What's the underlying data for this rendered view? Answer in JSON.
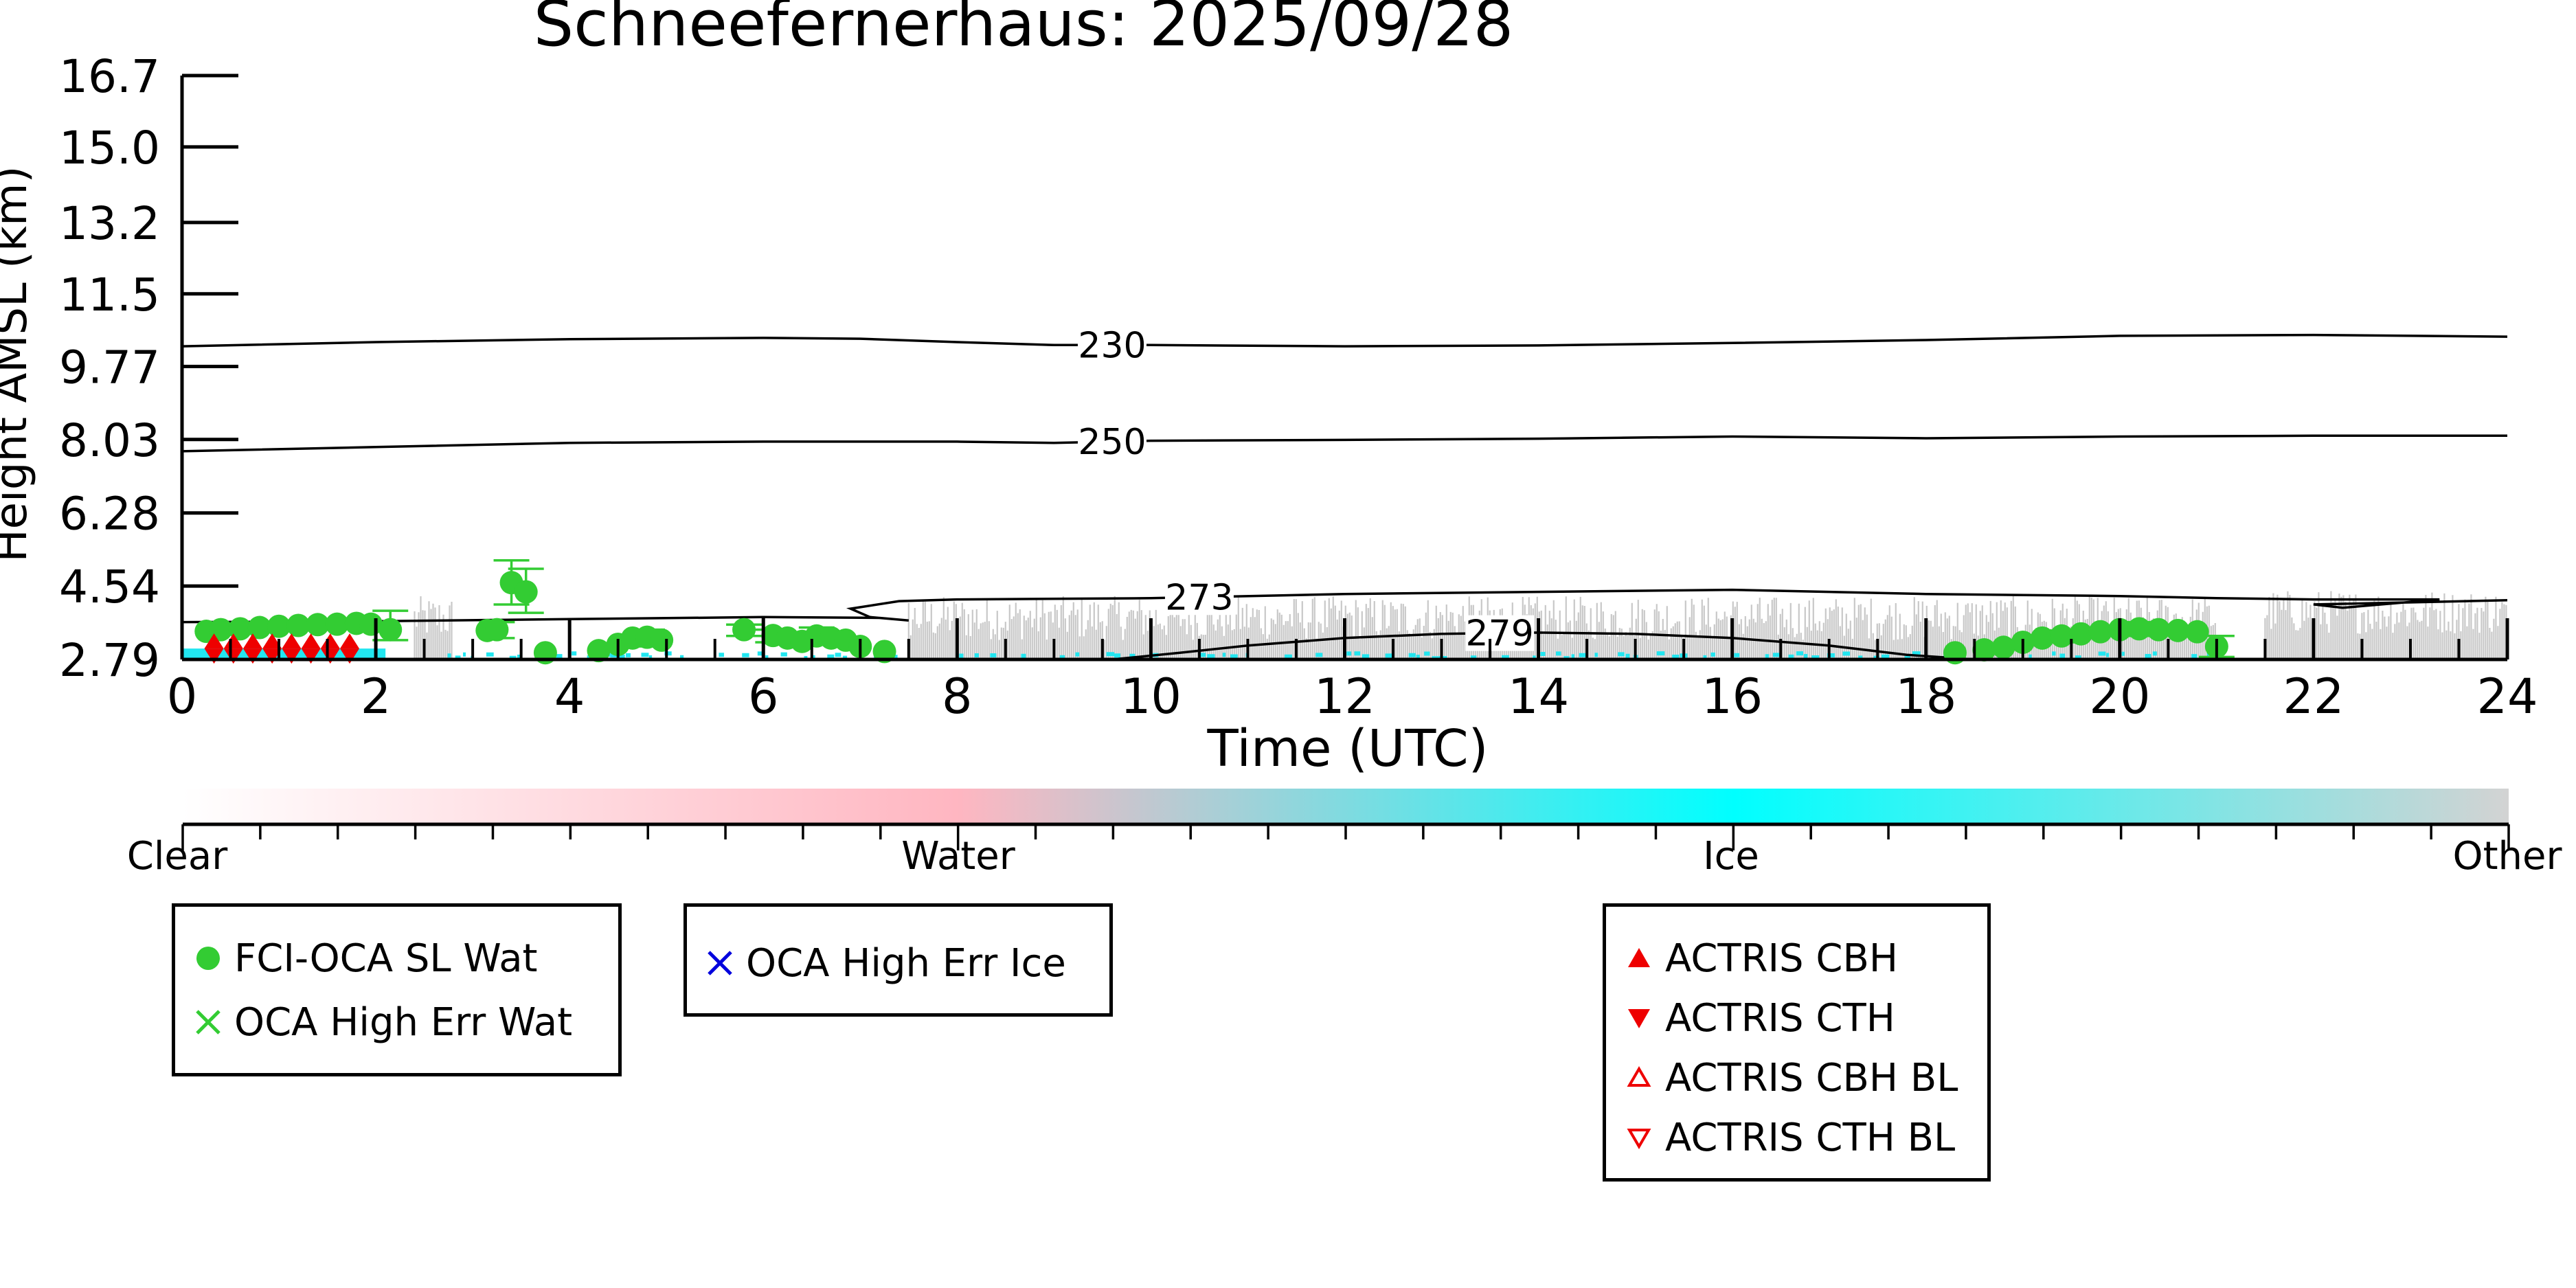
{
  "chart_data": {
    "type": "scatter",
    "title": "Schneefernerhaus: 2025/09/28",
    "xlabel": "Time (UTC)",
    "ylabel": "Height AMSL (km)",
    "xlim": [
      0,
      24
    ],
    "ylim": [
      2.79,
      16.7
    ],
    "x_ticks": [
      "0",
      "2",
      "4",
      "6",
      "8",
      "10",
      "12",
      "14",
      "16",
      "18",
      "20",
      "22",
      "24"
    ],
    "y_ticks": [
      "2.79",
      "4.54",
      "6.28",
      "8.03",
      "9.77",
      "11.5",
      "13.2",
      "15.0",
      "16.7"
    ],
    "contours": [
      {
        "label": "230",
        "label_x": 9.6,
        "points": [
          [
            0,
            10.25
          ],
          [
            2,
            10.35
          ],
          [
            4,
            10.42
          ],
          [
            6,
            10.45
          ],
          [
            7,
            10.43
          ],
          [
            8,
            10.35
          ],
          [
            9,
            10.28
          ],
          [
            10,
            10.28
          ],
          [
            12,
            10.25
          ],
          [
            14,
            10.27
          ],
          [
            16,
            10.33
          ],
          [
            18,
            10.4
          ],
          [
            20,
            10.5
          ],
          [
            22,
            10.52
          ],
          [
            24,
            10.48
          ]
        ]
      },
      {
        "label": "250",
        "label_x": 9.6,
        "points": [
          [
            0,
            7.75
          ],
          [
            2,
            7.85
          ],
          [
            4,
            7.95
          ],
          [
            6,
            7.98
          ],
          [
            8,
            7.98
          ],
          [
            9,
            7.95
          ],
          [
            10,
            8.0
          ],
          [
            12,
            8.02
          ],
          [
            14,
            8.05
          ],
          [
            16,
            8.1
          ],
          [
            18,
            8.06
          ],
          [
            20,
            8.1
          ],
          [
            22,
            8.12
          ],
          [
            24,
            8.12
          ]
        ]
      },
      {
        "label": "273",
        "label_x": 10.5,
        "points": [
          [
            0,
            3.68
          ],
          [
            2,
            3.7
          ],
          [
            4,
            3.75
          ],
          [
            6,
            3.8
          ],
          [
            7.2,
            3.78
          ],
          [
            7.5,
            3.72
          ],
          [
            7.1,
            3.8
          ],
          [
            6.9,
            4.0
          ],
          [
            7.4,
            4.18
          ],
          [
            8,
            4.22
          ],
          [
            10,
            4.25
          ],
          [
            12,
            4.35
          ],
          [
            14,
            4.4
          ],
          [
            16,
            4.45
          ],
          [
            18,
            4.35
          ],
          [
            20,
            4.3
          ],
          [
            21,
            4.25
          ],
          [
            22,
            4.22
          ],
          [
            23.3,
            4.22
          ],
          [
            22.3,
            4.02
          ],
          [
            22,
            4.1
          ],
          [
            22.8,
            4.14
          ],
          [
            24,
            4.2
          ]
        ]
      },
      {
        "label": "279",
        "label_x": 13.6,
        "points": [
          [
            9.6,
            2.79
          ],
          [
            10.3,
            2.95
          ],
          [
            11,
            3.12
          ],
          [
            12,
            3.3
          ],
          [
            13,
            3.4
          ],
          [
            14,
            3.43
          ],
          [
            15,
            3.4
          ],
          [
            16,
            3.3
          ],
          [
            17,
            3.12
          ],
          [
            17.8,
            2.9
          ],
          [
            18.5,
            2.79
          ]
        ]
      }
    ],
    "series": [
      {
        "name": "FCI-OCA SL Wat",
        "marker": "circle",
        "color": "#33cc33",
        "points": [
          [
            0.25,
            3.46
          ],
          [
            0.4,
            3.5
          ],
          [
            0.6,
            3.52
          ],
          [
            0.8,
            3.55
          ],
          [
            1.0,
            3.58
          ],
          [
            1.2,
            3.6
          ],
          [
            1.4,
            3.62
          ],
          [
            1.6,
            3.63
          ],
          [
            1.8,
            3.65
          ],
          [
            1.95,
            3.63
          ],
          [
            2.15,
            3.5
          ],
          [
            3.15,
            3.48
          ],
          [
            3.25,
            3.5
          ],
          [
            3.4,
            4.62
          ],
          [
            3.55,
            4.4
          ],
          [
            3.75,
            2.95
          ],
          [
            4.3,
            3.0
          ],
          [
            4.5,
            3.15
          ],
          [
            4.65,
            3.3
          ],
          [
            4.8,
            3.32
          ],
          [
            4.95,
            3.25
          ],
          [
            5.8,
            3.5
          ],
          [
            6.1,
            3.36
          ],
          [
            6.25,
            3.3
          ],
          [
            6.4,
            3.22
          ],
          [
            6.55,
            3.35
          ],
          [
            6.7,
            3.3
          ],
          [
            6.85,
            3.25
          ],
          [
            7.0,
            3.1
          ],
          [
            7.25,
            2.98
          ],
          [
            18.3,
            2.95
          ],
          [
            18.6,
            3.02
          ],
          [
            18.8,
            3.08
          ],
          [
            19.0,
            3.2
          ],
          [
            19.2,
            3.3
          ],
          [
            19.4,
            3.35
          ],
          [
            19.6,
            3.4
          ],
          [
            19.8,
            3.45
          ],
          [
            20.0,
            3.5
          ],
          [
            20.2,
            3.52
          ],
          [
            20.4,
            3.5
          ],
          [
            20.6,
            3.48
          ],
          [
            20.8,
            3.45
          ],
          [
            21.0,
            3.1
          ]
        ]
      },
      {
        "name": "OCA High Err Wat",
        "marker": "x",
        "color": "#33cc33",
        "points": []
      },
      {
        "name": "OCA High Err Ice",
        "marker": "x",
        "color": "#0000dd",
        "points": []
      },
      {
        "name": "ACTRIS CBH",
        "marker": "triangle-up",
        "color": "#ee0000",
        "points": [
          [
            0.33,
            3.05
          ],
          [
            0.53,
            3.05
          ],
          [
            0.73,
            3.05
          ],
          [
            0.93,
            3.05
          ],
          [
            1.13,
            3.05
          ],
          [
            1.33,
            3.05
          ],
          [
            1.53,
            3.05
          ],
          [
            1.73,
            3.05
          ]
        ]
      },
      {
        "name": "ACTRIS CTH",
        "marker": "triangle-down",
        "color": "#ee0000",
        "points": [
          [
            0.33,
            3.05
          ],
          [
            0.53,
            3.05
          ],
          [
            0.73,
            3.05
          ],
          [
            0.93,
            3.05
          ],
          [
            1.13,
            3.05
          ],
          [
            1.33,
            3.05
          ],
          [
            1.53,
            3.05
          ],
          [
            1.73,
            3.05
          ]
        ]
      },
      {
        "name": "ACTRIS CBH BL",
        "marker": "triangle-up-open",
        "color": "#ee0000",
        "points": []
      },
      {
        "name": "ACTRIS CTH BL",
        "marker": "triangle-down-open",
        "color": "#ee0000",
        "points": []
      }
    ],
    "error_bars": [
      {
        "x": 2.15,
        "y": 3.5,
        "low": 3.25,
        "high": 3.95
      },
      {
        "x": 3.25,
        "y": 3.5,
        "low": 3.3,
        "high": 3.68
      },
      {
        "x": 3.4,
        "y": 4.62,
        "low": 4.1,
        "high": 5.15
      },
      {
        "x": 3.55,
        "y": 4.4,
        "low": 3.9,
        "high": 4.95
      },
      {
        "x": 4.8,
        "y": 3.32,
        "low": 3.1,
        "high": 3.5
      },
      {
        "x": 5.8,
        "y": 3.5,
        "low": 3.35,
        "high": 3.62
      },
      {
        "x": 6.1,
        "y": 3.36,
        "low": 3.2,
        "high": 3.5
      },
      {
        "x": 6.55,
        "y": 3.35,
        "low": 3.15,
        "high": 3.55
      },
      {
        "x": 19.4,
        "y": 3.35,
        "low": 3.2,
        "high": 3.48
      },
      {
        "x": 20.2,
        "y": 3.52,
        "low": 3.35,
        "high": 3.68
      },
      {
        "x": 21.0,
        "y": 3.1,
        "low": 2.85,
        "high": 3.35
      }
    ],
    "classification_background": {
      "gray_periods": [
        [
          2.4,
          2.8
        ],
        [
          7.5,
          21.0
        ],
        [
          21.5,
          24.0
        ]
      ],
      "ice_period": [
        0.0,
        2.1
      ]
    },
    "colorbar": {
      "labels": [
        "Clear",
        "Water",
        "Ice",
        "Other"
      ],
      "colors": [
        "#ffffff",
        "#ffb6c1",
        "#00ffff",
        "#d3d3d3"
      ]
    }
  },
  "legends": [
    {
      "entries": [
        {
          "label": "FCI-OCA SL Wat",
          "marker": "circle",
          "color": "#33cc33"
        },
        {
          "label": "OCA High Err Wat",
          "marker": "x",
          "color": "#33cc33"
        }
      ]
    },
    {
      "entries": [
        {
          "label": "OCA High Err Ice",
          "marker": "x",
          "color": "#0000dd"
        }
      ]
    },
    {
      "entries": [
        {
          "label": "ACTRIS CBH",
          "marker": "triangle-up",
          "color": "#ee0000"
        },
        {
          "label": "ACTRIS CTH",
          "marker": "triangle-down",
          "color": "#ee0000"
        },
        {
          "label": "ACTRIS CBH BL",
          "marker": "triangle-up-open",
          "color": "#ee0000"
        },
        {
          "label": "ACTRIS CTH BL",
          "marker": "triangle-down-open",
          "color": "#ee0000"
        }
      ]
    }
  ]
}
